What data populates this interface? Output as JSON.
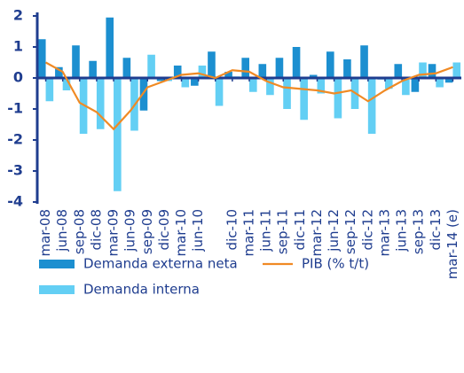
{
  "chart_data": {
    "type": "bar-line",
    "categories": [
      "mar-08",
      "jun-08",
      "sep-08",
      "dic-08",
      "mar-09",
      "jun-09",
      "sep-09",
      "dic-09",
      "mar-10",
      "jun-10",
      null,
      "dic-10",
      "mar-11",
      "jun-11",
      "sep-11",
      "dic-11",
      "mar-12",
      "jun-12",
      "sep-12",
      "dic-12",
      "mar-13",
      "jun-13",
      "sep-13",
      "dic-13",
      "mar-14 (e)"
    ],
    "series": [
      {
        "name": "Demanda externa neta",
        "type": "bar",
        "color": "#1c8fd0",
        "values": [
          1.25,
          0.35,
          1.05,
          0.55,
          1.95,
          0.65,
          -1.05,
          -0.1,
          0.4,
          -0.25,
          0.85,
          0.2,
          0.65,
          0.45,
          0.65,
          1.0,
          0.1,
          0.85,
          0.6,
          1.05,
          -0.05,
          0.45,
          -0.45,
          0.45,
          -0.15
        ]
      },
      {
        "name": "Demanda interna",
        "type": "bar",
        "color": "#63cff4",
        "values": [
          -0.75,
          -0.4,
          -1.8,
          -1.65,
          -3.65,
          -1.7,
          0.75,
          -0.1,
          -0.3,
          0.4,
          -0.9,
          0.05,
          -0.45,
          -0.55,
          -1.0,
          -1.35,
          -0.5,
          -1.3,
          -1.0,
          -1.8,
          -0.35,
          -0.55,
          0.5,
          -0.3,
          0.5
        ]
      },
      {
        "name": "PIB (% t/t)",
        "type": "line",
        "color": "#f08a24",
        "values": [
          0.5,
          0.2,
          -0.8,
          -1.1,
          -1.65,
          -1.05,
          -0.3,
          -0.1,
          0.1,
          0.15,
          0.0,
          0.25,
          0.2,
          -0.1,
          -0.3,
          -0.35,
          -0.4,
          -0.5,
          -0.4,
          -0.75,
          -0.4,
          -0.1,
          0.1,
          0.15,
          0.35
        ]
      }
    ],
    "ylim": [
      -4,
      2
    ],
    "yticks": [
      -4,
      -3,
      -2,
      -1,
      0,
      1,
      2
    ],
    "axis_color": "#1f3d8f"
  }
}
